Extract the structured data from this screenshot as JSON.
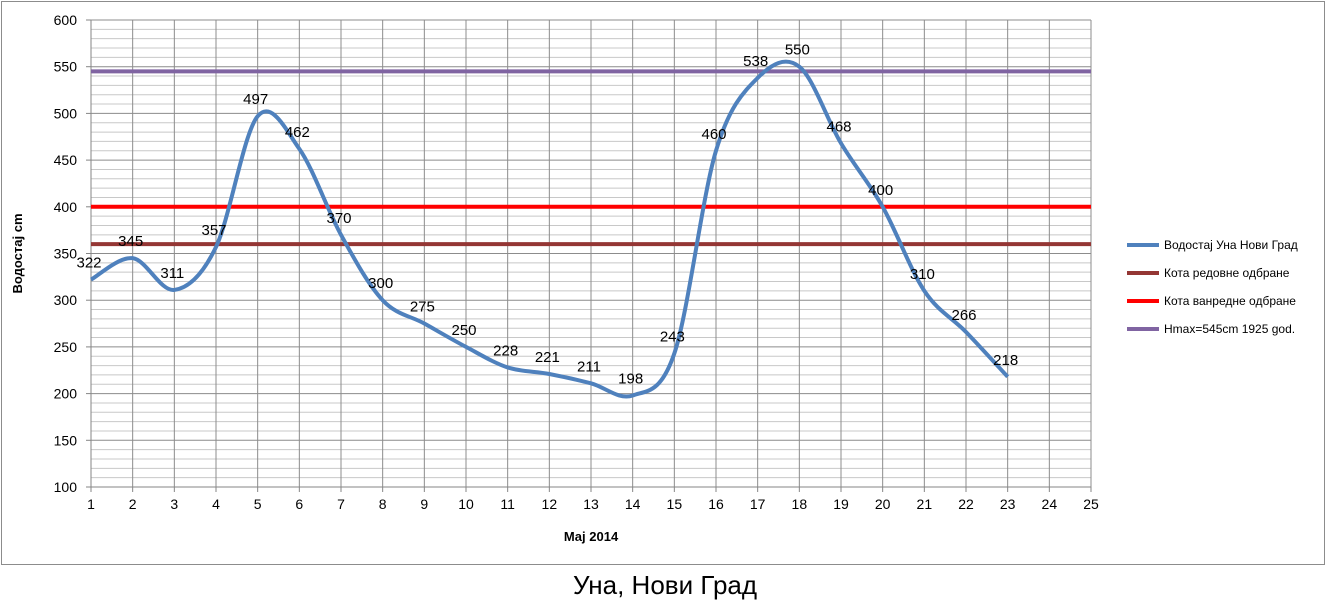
{
  "caption": "Уна, Нови Град",
  "chart_data": {
    "type": "line",
    "xlabel": "Мај 2014",
    "ylabel": "Водостај cm",
    "xlim": [
      1,
      25
    ],
    "ylim": [
      100,
      600
    ],
    "y_major_ticks": [
      100,
      150,
      200,
      250,
      300,
      350,
      400,
      450,
      500,
      550,
      600
    ],
    "y_minor_step": 10,
    "x_ticks": [
      1,
      2,
      3,
      4,
      5,
      6,
      7,
      8,
      9,
      10,
      11,
      12,
      13,
      14,
      15,
      16,
      17,
      18,
      19,
      20,
      21,
      22,
      23,
      24,
      25
    ],
    "grid": true,
    "legend_position": "right",
    "series": [
      {
        "name": "Водостај Уна Нови Град",
        "color": "#4f81bd",
        "smooth": true,
        "x": [
          1,
          2,
          3,
          4,
          5,
          6,
          7,
          8,
          9,
          10,
          11,
          12,
          13,
          14,
          15,
          16,
          17,
          18,
          19,
          20,
          21,
          22,
          23
        ],
        "values": [
          322,
          345,
          311,
          357,
          497,
          462,
          370,
          300,
          275,
          250,
          228,
          221,
          211,
          198,
          243,
          460,
          538,
          550,
          468,
          400,
          310,
          266,
          218
        ],
        "labels": [
          "322",
          "345",
          "311",
          "357",
          "497",
          "462",
          "370",
          "300",
          "275",
          "250",
          "228",
          "221",
          "211",
          "198",
          "243",
          "460",
          "538",
          "550",
          "468",
          "400",
          "310",
          "266",
          "218"
        ]
      },
      {
        "name": "Кота редовне одбране",
        "color": "#943634",
        "constant": 360
      },
      {
        "name": "Кота ванредне одбране",
        "color": "#ff0000",
        "constant": 400
      },
      {
        "name": "Hmax=545cm 1925 god.",
        "color": "#8064a2",
        "constant": 545
      }
    ]
  }
}
